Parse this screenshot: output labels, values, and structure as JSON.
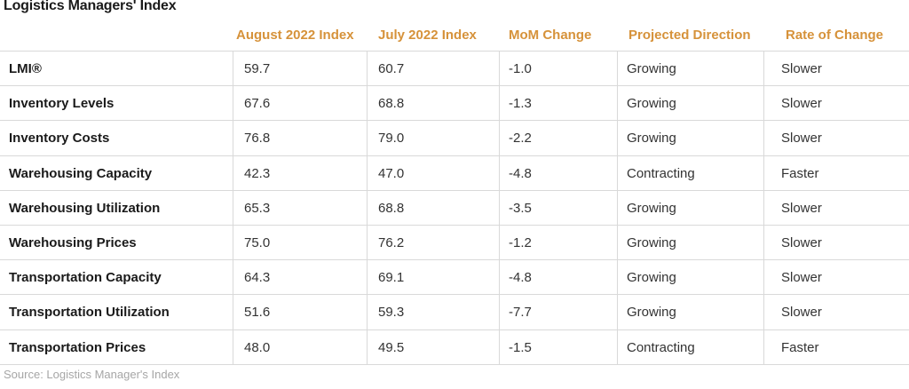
{
  "title": "Logistics Managers' Index",
  "source": "Source: Logistics Manager's Index",
  "chart_data": {
    "type": "table",
    "columns": [
      "August 2022 Index",
      "July 2022 Index",
      "MoM Change",
      "Projected Direction",
      "Rate of Change"
    ],
    "rows": [
      {
        "label": "LMI®",
        "cells": [
          "59.7",
          "60.7",
          "-1.0",
          "Growing",
          "Slower"
        ]
      },
      {
        "label": "Inventory Levels",
        "cells": [
          "67.6",
          "68.8",
          "-1.3",
          "Growing",
          "Slower"
        ]
      },
      {
        "label": "Inventory Costs",
        "cells": [
          "76.8",
          "79.0",
          "-2.2",
          "Growing",
          "Slower"
        ]
      },
      {
        "label": "Warehousing Capacity",
        "cells": [
          "42.3",
          "47.0",
          "-4.8",
          "Contracting",
          "Faster"
        ]
      },
      {
        "label": "Warehousing Utilization",
        "cells": [
          "65.3",
          "68.8",
          "-3.5",
          "Growing",
          "Slower"
        ]
      },
      {
        "label": "Warehousing Prices",
        "cells": [
          "75.0",
          "76.2",
          "-1.2",
          "Growing",
          "Slower"
        ]
      },
      {
        "label": "Transportation Capacity",
        "cells": [
          "64.3",
          "69.1",
          "-4.8",
          "Growing",
          "Slower"
        ]
      },
      {
        "label": "Transportation Utilization",
        "cells": [
          "51.6",
          "59.3",
          "-7.7",
          "Growing",
          "Slower"
        ]
      },
      {
        "label": "Transportation Prices",
        "cells": [
          "48.0",
          "49.5",
          "-1.5",
          "Contracting",
          "Faster"
        ]
      }
    ]
  }
}
